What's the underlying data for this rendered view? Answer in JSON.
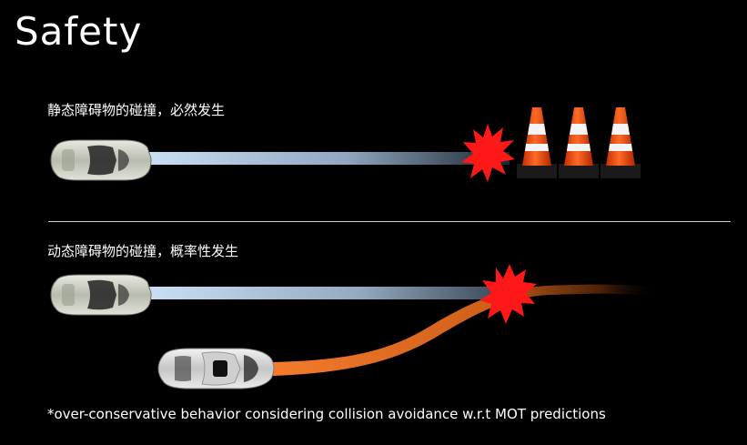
{
  "title": "Safety",
  "scenarios": {
    "static": {
      "caption": "静态障碍物的碰撞，必然发生",
      "obstacle": "traffic-cone-icon",
      "obstacle_count": 3
    },
    "dynamic": {
      "caption": "动态障碍物的碰撞，概率性发生"
    }
  },
  "footnote": "*over-conservative behavior considering collision avoidance w.r.t MOT predictions",
  "colors": {
    "background": "#000000",
    "ego_trail": "#bcd6ee",
    "other_trail": "#f07a2a",
    "collision": "#ff1a1a",
    "cone": "#ff5a1e"
  }
}
